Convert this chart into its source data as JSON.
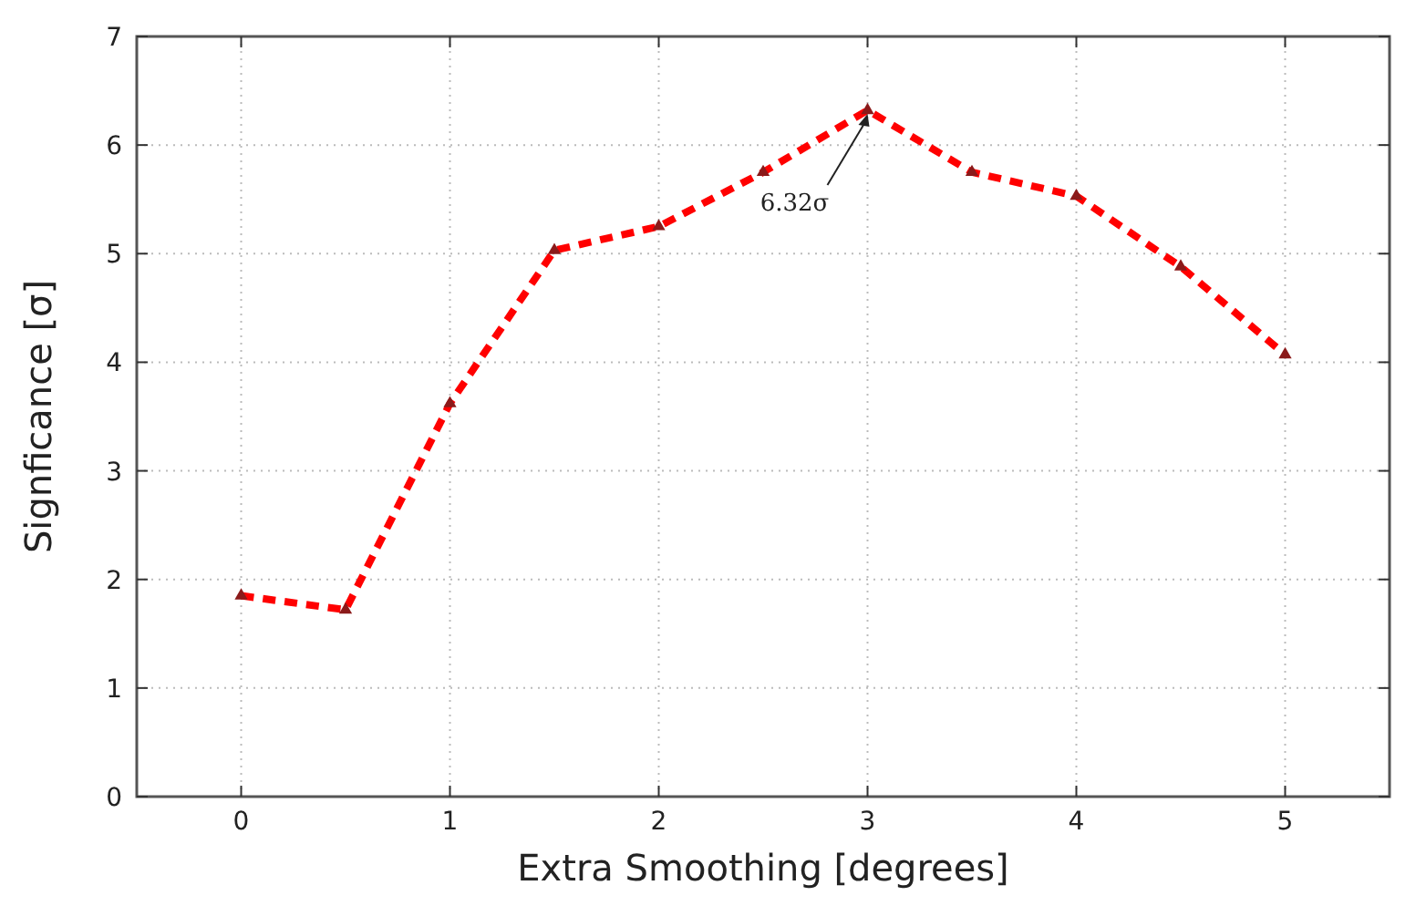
{
  "chart_data": {
    "type": "line",
    "xlabel": "Extra Smoothing [degrees]",
    "ylabel": "Signficance [σ]",
    "x": [
      0,
      0.5,
      1,
      1.5,
      2,
      2.5,
      3,
      3.5,
      4,
      4.5,
      5
    ],
    "series": [
      {
        "color": "#ff0000",
        "values": [
          1.85,
          1.72,
          3.62,
          5.03,
          5.25,
          5.75,
          6.32,
          5.75,
          5.53,
          4.88,
          4.07
        ]
      }
    ],
    "xlim": [
      -0.5,
      5.5
    ],
    "xticks": [
      0,
      1,
      2,
      3,
      4,
      5
    ],
    "ylim": [
      0,
      7
    ],
    "yticks": [
      0,
      1,
      2,
      3,
      4,
      5,
      6,
      7
    ],
    "grid": true,
    "marker": "triangle",
    "line_style": "dashed",
    "annotations": [
      {
        "text": "6.32σ",
        "x": 3,
        "y": 6.32
      }
    ]
  }
}
